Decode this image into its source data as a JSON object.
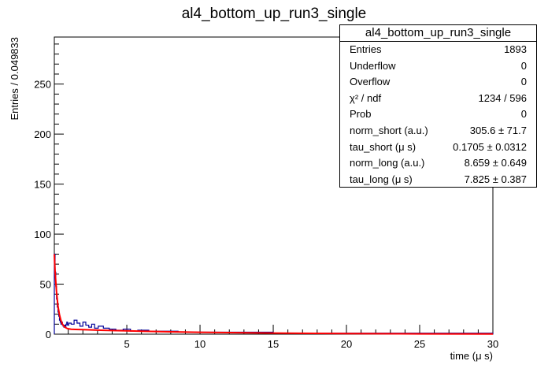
{
  "chart_data": {
    "type": "histogram",
    "title": "al4_bottom_up_run3_single",
    "xlabel": "time (μ s)",
    "ylabel": "Entries / 0.049833",
    "xlim": [
      0.05,
      30
    ],
    "ylim": [
      0,
      297
    ],
    "bin_width": 0.049833,
    "x_ticks": [
      5,
      10,
      15,
      20,
      25,
      30
    ],
    "y_ticks": [
      0,
      50,
      100,
      150,
      200,
      250
    ],
    "histogram_color": "#000099",
    "fit_color": "#ff0000",
    "histogram_bins": {
      "x": [
        0.075,
        0.125,
        0.175,
        0.225,
        0.275,
        0.325,
        0.375,
        0.425,
        0.475,
        0.525,
        0.575,
        0.625,
        0.675,
        0.725,
        0.775,
        0.825,
        0.875,
        0.925,
        0.975,
        1.1,
        1.3,
        1.5,
        1.7,
        1.9,
        2.1,
        2.3,
        2.5,
        2.7,
        2.9,
        3.2,
        3.6,
        4.0,
        4.5,
        5.0,
        5.5,
        6.0,
        7.0,
        8.0,
        9.0,
        10.0,
        12.0,
        14.0,
        16.0,
        18.0,
        20.0,
        22.0,
        24.0,
        26.0,
        28.0,
        29.5
      ],
      "y": [
        80,
        62,
        48,
        35,
        27,
        22,
        18,
        14,
        12,
        10,
        12,
        9,
        8,
        7,
        9,
        8,
        10,
        12,
        9,
        11,
        10,
        14,
        11,
        8,
        12,
        9,
        7,
        10,
        6,
        8,
        6,
        5,
        4,
        5,
        3,
        4,
        3,
        3,
        2,
        2,
        2,
        2,
        1,
        1,
        1,
        1,
        1,
        1,
        1,
        1
      ]
    },
    "fit_curve": {
      "x": [
        0.05,
        0.1,
        0.2,
        0.3,
        0.4,
        0.5,
        0.6,
        0.7,
        0.8,
        0.9,
        1.0,
        1.2,
        1.5,
        2,
        3,
        4,
        5,
        6,
        8,
        10,
        12,
        15,
        20,
        25,
        30
      ],
      "y": [
        80,
        63,
        42,
        28,
        19.5,
        13.8,
        10.2,
        8.1,
        6.7,
        5.9,
        5.4,
        4.95,
        4.75,
        4.55,
        4.05,
        3.6,
        3.3,
        2.95,
        2.4,
        1.9,
        1.55,
        1.1,
        0.62,
        0.33,
        0.18
      ]
    }
  },
  "stats": {
    "title": "al4_bottom_up_run3_single",
    "rows": [
      {
        "label": "Entries",
        "value": "1893"
      },
      {
        "label": "Underflow",
        "value": "0"
      },
      {
        "label": "Overflow",
        "value": "0"
      },
      {
        "label": "χ² / ndf",
        "value": "1234 / 596"
      },
      {
        "label": "Prob",
        "value": "0"
      },
      {
        "label": "norm_short (a.u.)",
        "value": "305.6 ± 71.7"
      },
      {
        "label": "tau_short (μ s)",
        "value": "0.1705 ± 0.0312"
      },
      {
        "label": "norm_long (a.u.)",
        "value": "8.659 ± 0.649"
      },
      {
        "label": "tau_long (μ s)",
        "value": "7.825 ± 0.387"
      }
    ]
  }
}
